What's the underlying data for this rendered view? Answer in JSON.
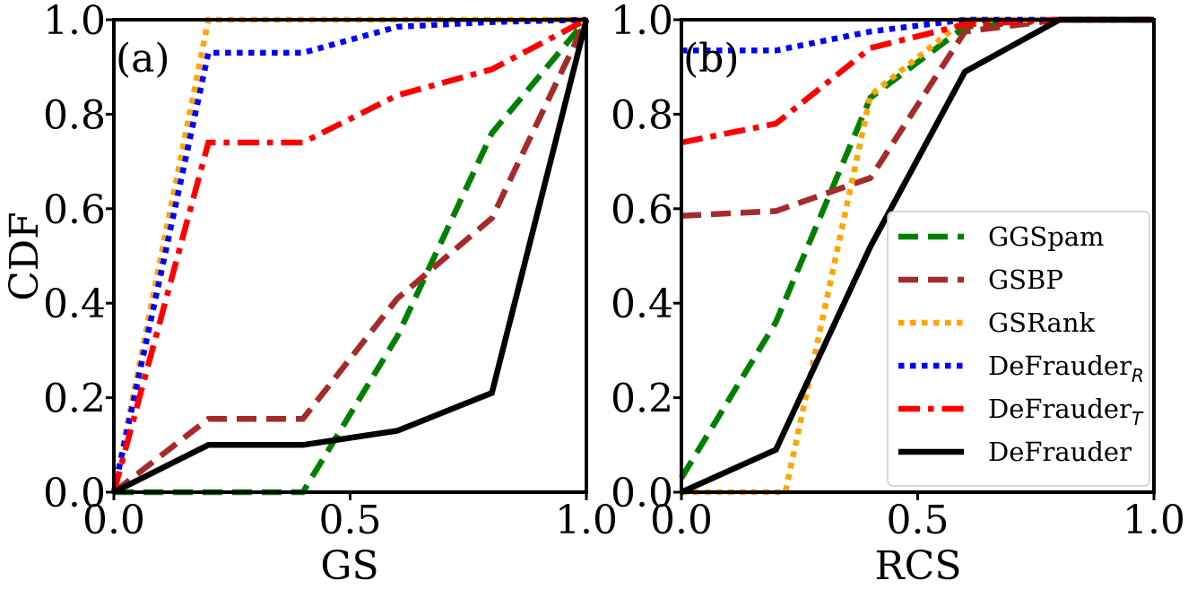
{
  "chart_data": [
    {
      "type": "line",
      "panel_label": "(a)",
      "xlabel": "GS",
      "ylabel": "CDF",
      "xlim": [
        0,
        1
      ],
      "ylim": [
        0,
        1
      ],
      "xticks": [
        "0.0",
        "0.5",
        "1.0"
      ],
      "yticks": [
        "0.0",
        "0.2",
        "0.4",
        "0.6",
        "0.8",
        "1.0"
      ],
      "series": [
        {
          "name": "GGSpam",
          "x": [
            0,
            0.2,
            0.4,
            0.6,
            0.8,
            1.0
          ],
          "y": [
            0.0,
            0.0,
            0.0,
            0.33,
            0.76,
            1.0
          ]
        },
        {
          "name": "GSBP",
          "x": [
            0,
            0.2,
            0.4,
            0.6,
            0.8,
            1.0
          ],
          "y": [
            0.0,
            0.155,
            0.155,
            0.41,
            0.58,
            1.0
          ]
        },
        {
          "name": "GSRank",
          "x": [
            0,
            0.2,
            0.4,
            0.6,
            0.8,
            1.0
          ],
          "y": [
            0.0,
            1.0,
            1.0,
            1.0,
            1.0,
            1.0
          ]
        },
        {
          "name": "DeFrauderR",
          "x": [
            0,
            0.2,
            0.4,
            0.6,
            0.8,
            1.0
          ],
          "y": [
            0.0,
            0.93,
            0.93,
            0.985,
            0.995,
            1.0
          ]
        },
        {
          "name": "DeFrauderT",
          "x": [
            0,
            0.2,
            0.4,
            0.6,
            0.8,
            1.0
          ],
          "y": [
            0.0,
            0.74,
            0.74,
            0.84,
            0.895,
            1.0
          ]
        },
        {
          "name": "DeFrauder",
          "x": [
            0,
            0.2,
            0.4,
            0.6,
            0.8,
            1.0
          ],
          "y": [
            0.0,
            0.1,
            0.1,
            0.13,
            0.21,
            1.0
          ]
        }
      ]
    },
    {
      "type": "line",
      "panel_label": "(b)",
      "xlabel": "RCS",
      "ylabel": "",
      "xlim": [
        0,
        1
      ],
      "ylim": [
        0,
        1
      ],
      "xticks": [
        "0.0",
        "0.5",
        "1.0"
      ],
      "yticks": [
        "0.0",
        "0.2",
        "0.4",
        "0.6",
        "0.8",
        "1.0"
      ],
      "legend_position": "lower-right",
      "series": [
        {
          "name": "GGSpam",
          "x": [
            0,
            0.2,
            0.4,
            0.6,
            0.8,
            1.0
          ],
          "y": [
            0.03,
            0.36,
            0.835,
            0.985,
            1.0,
            1.0
          ]
        },
        {
          "name": "GSBP",
          "x": [
            0,
            0.2,
            0.4,
            0.6,
            0.8,
            1.0
          ],
          "y": [
            0.585,
            0.595,
            0.665,
            0.975,
            1.0,
            1.0
          ]
        },
        {
          "name": "GSRank",
          "x": [
            0,
            0.2,
            0.22,
            0.4,
            0.6,
            0.8,
            1.0
          ],
          "y": [
            0.0,
            0.0,
            0.0,
            0.84,
            1.0,
            1.0,
            1.0
          ]
        },
        {
          "name": "DeFrauderR",
          "x": [
            0,
            0.2,
            0.4,
            0.6,
            0.8,
            1.0
          ],
          "y": [
            0.935,
            0.935,
            0.975,
            1.0,
            1.0,
            1.0
          ]
        },
        {
          "name": "DeFrauderT",
          "x": [
            0,
            0.2,
            0.4,
            0.6,
            0.8,
            1.0
          ],
          "y": [
            0.74,
            0.78,
            0.94,
            0.99,
            1.0,
            1.0
          ]
        },
        {
          "name": "DeFrauder",
          "x": [
            0,
            0.2,
            0.4,
            0.6,
            0.8,
            1.0
          ],
          "y": [
            0.0,
            0.09,
            0.52,
            0.89,
            1.0,
            1.0
          ]
        }
      ]
    }
  ],
  "legend": [
    {
      "key": "GGSpam",
      "label": "GGSpam",
      "sub": "",
      "color": "#008000",
      "style": "dashed"
    },
    {
      "key": "GSBP",
      "label": "GSBP",
      "sub": "",
      "color": "#a52a2a",
      "style": "dashed"
    },
    {
      "key": "GSRank",
      "label": "GSRank",
      "sub": "",
      "color": "#ffa500",
      "style": "dotted"
    },
    {
      "key": "DeFrauderR",
      "label": "DeFrauder",
      "sub": "R",
      "color": "#0000ff",
      "style": "dotted"
    },
    {
      "key": "DeFrauderT",
      "label": "DeFrauder",
      "sub": "T",
      "color": "#ff0000",
      "style": "dashdot"
    },
    {
      "key": "DeFrauder",
      "label": "DeFrauder",
      "sub": "",
      "color": "#000000",
      "style": "solid"
    }
  ]
}
